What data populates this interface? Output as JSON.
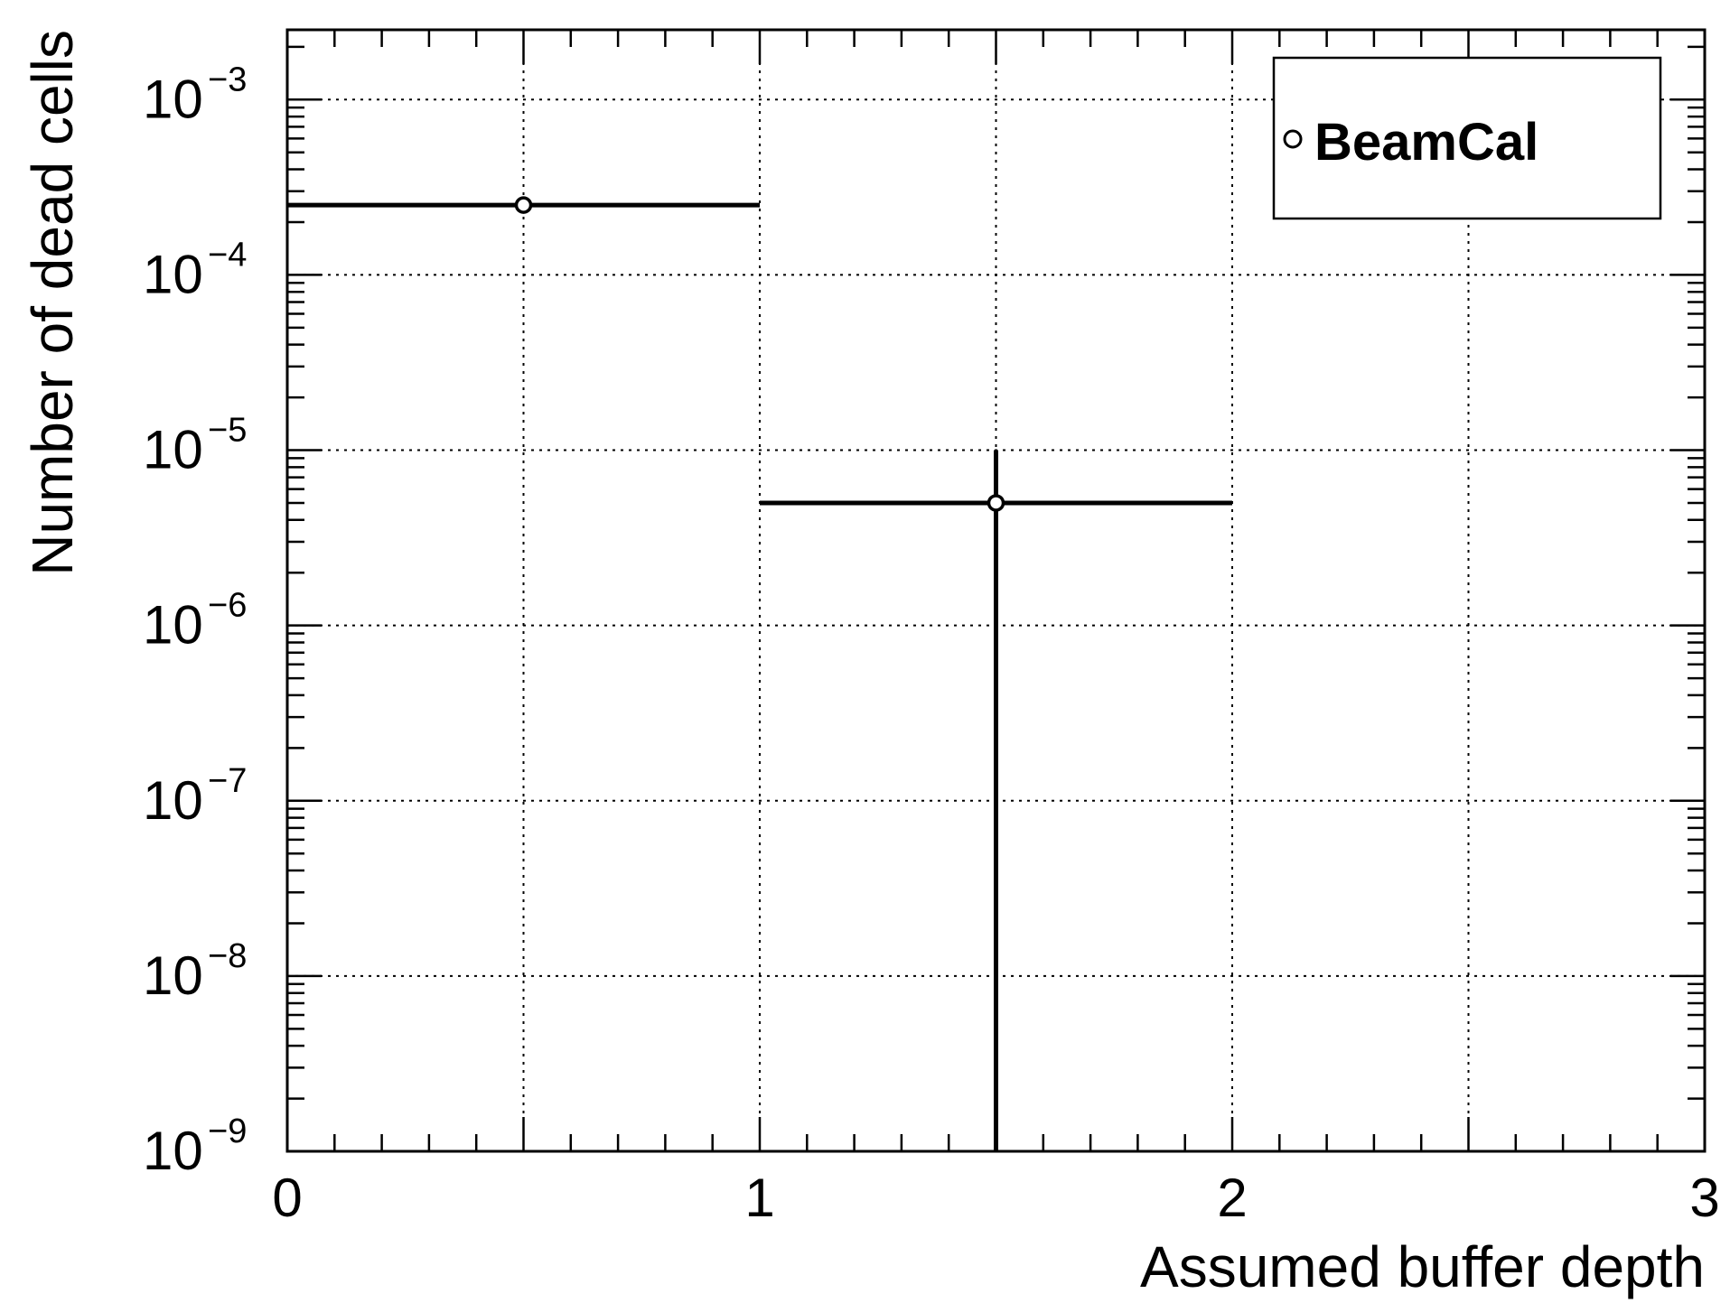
{
  "chart_data": {
    "type": "scatter",
    "xlabel": "Assumed buffer depth",
    "ylabel": "Number of dead cells",
    "xlim": [
      0,
      3
    ],
    "ylim": [
      1e-09,
      0.0025
    ],
    "yscale": "log",
    "grid": true,
    "x_ticks": [
      {
        "value": 0,
        "label": "0"
      },
      {
        "value": 1,
        "label": "1"
      },
      {
        "value": 2,
        "label": "2"
      },
      {
        "value": 3,
        "label": "3"
      }
    ],
    "y_ticks": [
      {
        "exp": -9,
        "base": "10",
        "sup": "−9"
      },
      {
        "exp": -8,
        "base": "10",
        "sup": "−8"
      },
      {
        "exp": -7,
        "base": "10",
        "sup": "−7"
      },
      {
        "exp": -6,
        "base": "10",
        "sup": "−6"
      },
      {
        "exp": -5,
        "base": "10",
        "sup": "−5"
      },
      {
        "exp": -4,
        "base": "10",
        "sup": "−4"
      },
      {
        "exp": -3,
        "base": "10",
        "sup": "−3"
      }
    ],
    "legend": {
      "position": "top-right",
      "entries": [
        "BeamCal"
      ]
    },
    "series": [
      {
        "name": "BeamCal",
        "marker": "open-circle",
        "color": "#000000",
        "points": [
          {
            "x": 0.5,
            "xerr": 0.5,
            "y": 0.00025,
            "ylow": null,
            "yhigh": null
          },
          {
            "x": 1.5,
            "xerr": 0.5,
            "y": 5e-06,
            "ylow": 1e-09,
            "yhigh": 1e-05
          }
        ]
      }
    ]
  }
}
